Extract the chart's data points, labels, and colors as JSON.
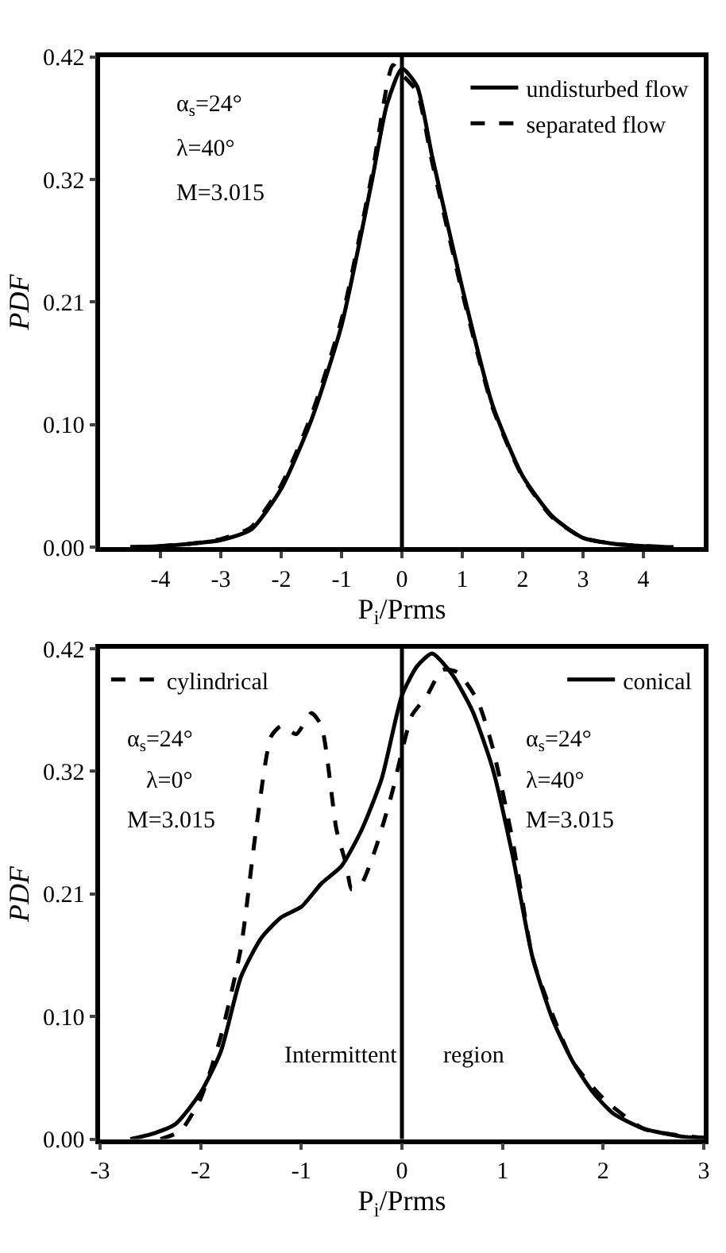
{
  "chart_data": [
    {
      "type": "line",
      "xlabel": "P$_{i}$/Prms",
      "ylabel": "PDF",
      "xlim": [
        -5,
        5
      ],
      "xticks": [
        -4,
        -3,
        -2,
        -1,
        0,
        1,
        2,
        3,
        4
      ],
      "ylim": [
        0,
        0.42
      ],
      "yticks": [
        {
          "value": 0,
          "label": "0.00"
        },
        {
          "value": 0.105,
          "label": "0.10"
        },
        {
          "value": 0.21,
          "label": "0.21"
        },
        {
          "value": 0.315,
          "label": "0.32"
        },
        0.42
      ],
      "grid": false,
      "legend": "top right",
      "marker": "none",
      "ref_lines": [
        {
          "axis": "x",
          "value": 0,
          "color": "#000000",
          "line_style": "solid"
        }
      ],
      "annotations": [
        "α$_{s}$=24°",
        "λ=40°",
        "M=3.015"
      ],
      "series": [
        {
          "name": "undisturbed flow",
          "color": "#000000",
          "line_style": "solid",
          "x": [
            -4.5,
            -4,
            -3.5,
            -3,
            -2.5,
            -2,
            -1.5,
            -1,
            -0.5,
            -0.25,
            0,
            0.25,
            0.5,
            1,
            1.5,
            2,
            2.5,
            3,
            3.5,
            4,
            4.5
          ],
          "values": [
            0,
            0.001,
            0.003,
            0.006,
            0.015,
            0.05,
            0.109,
            0.19,
            0.313,
            0.379,
            0.41,
            0.395,
            0.335,
            0.222,
            0.122,
            0.061,
            0.026,
            0.008,
            0.003,
            0.001,
            0
          ]
        },
        {
          "name": "separated flow",
          "color": "#000000",
          "line_style": "dashed",
          "x": [
            -4.5,
            -4,
            -3.5,
            -3,
            -2.5,
            -2,
            -1.5,
            -1,
            -0.5,
            -0.15,
            0,
            0.25,
            0.5,
            1,
            1.5,
            2,
            2.5,
            3,
            3.5,
            4,
            4.5
          ],
          "values": [
            0,
            0.001,
            0.003,
            0.007,
            0.017,
            0.053,
            0.113,
            0.195,
            0.318,
            0.413,
            0.405,
            0.39,
            0.33,
            0.218,
            0.12,
            0.06,
            0.025,
            0.008,
            0.003,
            0.001,
            0
          ]
        }
      ]
    },
    {
      "type": "line",
      "xlabel": "P$_{i}$/Prms",
      "ylabel": "PDF",
      "xlim": [
        -3,
        3
      ],
      "xticks": [
        -3,
        -2,
        -1,
        0,
        1,
        2,
        3
      ],
      "ylim": [
        0,
        0.42
      ],
      "yticks": [
        {
          "value": 0,
          "label": "0.00"
        },
        {
          "value": 0.105,
          "label": "0.10"
        },
        {
          "value": 0.21,
          "label": "0.21"
        },
        {
          "value": 0.315,
          "label": "0.32"
        },
        0.42
      ],
      "grid": false,
      "legend": "top",
      "marker": "none",
      "ref_lines": [
        {
          "axis": "x",
          "value": 0,
          "color": "#000000",
          "line_style": "solid"
        }
      ],
      "annotations": [
        "α$_{s}$=24°",
        "λ=0°",
        "M=3.015",
        "α$_{s}$=24°",
        "λ=40°",
        "M=3.015",
        "Intermittent",
        "region"
      ],
      "series": [
        {
          "name": "cylindrical",
          "color": "#000000",
          "line_style": "dashed",
          "x": [
            -2.4,
            -2.2,
            -2.0,
            -1.8,
            -1.6,
            -1.45,
            -1.3,
            -1.2,
            -1.05,
            -0.9,
            -0.8,
            -0.65,
            -0.55,
            -0.5,
            -0.4,
            -0.25,
            -0.1,
            0,
            0.1,
            0.25,
            0.4,
            0.55,
            0.75,
            0.9,
            1.1,
            1.3,
            1.5,
            1.7,
            2.0,
            2.4,
            3.0
          ],
          "values": [
            0,
            0.007,
            0.035,
            0.088,
            0.164,
            0.265,
            0.345,
            0.354,
            0.347,
            0.365,
            0.354,
            0.265,
            0.234,
            0.214,
            0.219,
            0.252,
            0.296,
            0.332,
            0.363,
            0.38,
            0.402,
            0.4,
            0.376,
            0.336,
            0.256,
            0.155,
            0.106,
            0.066,
            0.035,
            0.009,
            0.001
          ]
        },
        {
          "name": "conical",
          "color": "#000000",
          "line_style": "solid",
          "x": [
            -2.7,
            -2.5,
            -2.25,
            -2.0,
            -1.8,
            -1.6,
            -1.4,
            -1.2,
            -1.0,
            -0.8,
            -0.6,
            -0.4,
            -0.2,
            0,
            0.15,
            0.3,
            0.5,
            0.7,
            0.9,
            1.1,
            1.3,
            1.5,
            1.7,
            1.9,
            2.1,
            2.4,
            2.8,
            3.0
          ],
          "values": [
            0,
            0.004,
            0.013,
            0.04,
            0.075,
            0.139,
            0.172,
            0.19,
            0.199,
            0.219,
            0.234,
            0.265,
            0.309,
            0.38,
            0.405,
            0.416,
            0.398,
            0.367,
            0.318,
            0.243,
            0.155,
            0.102,
            0.066,
            0.04,
            0.022,
            0.009,
            0.002,
            0.001
          ]
        }
      ]
    }
  ]
}
